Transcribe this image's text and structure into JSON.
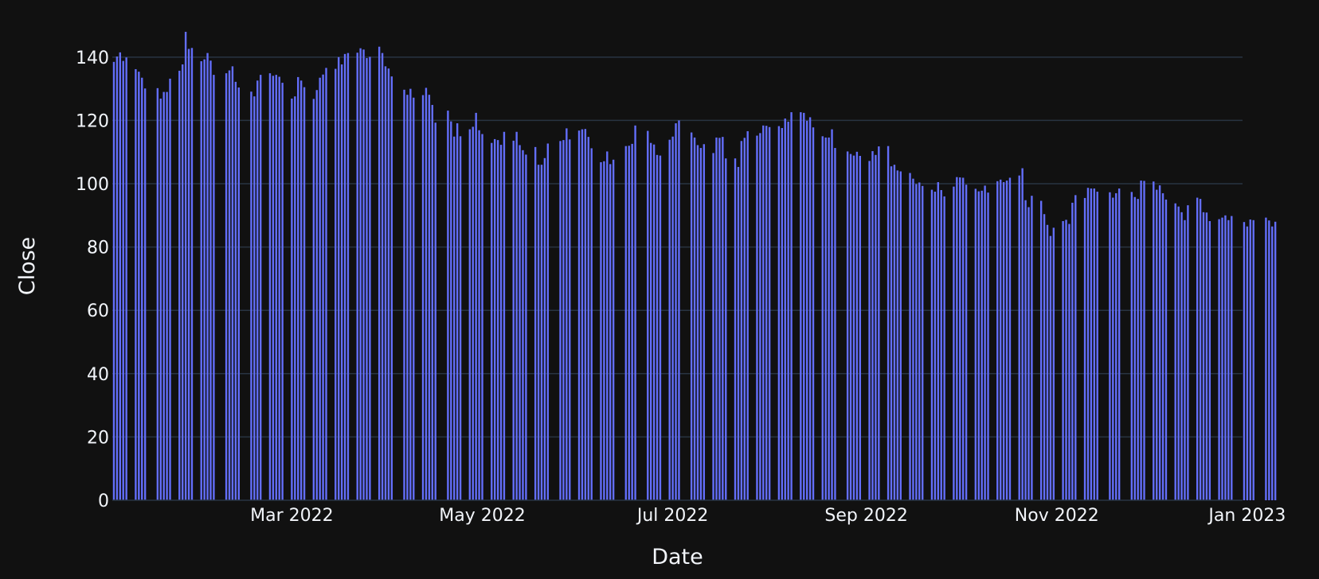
{
  "chart_data": {
    "type": "bar",
    "title": "",
    "xlabel": "Date",
    "ylabel": "Close",
    "ylim": [
      0,
      148
    ],
    "xlim": [
      "2022-01-03",
      "2022-12-30"
    ],
    "grid": true,
    "legend": "none",
    "colors": {
      "background": "#111111",
      "bar": "#636efa",
      "grid": "#283442",
      "text": "#f2f5fa"
    },
    "x_ticks": [
      {
        "date": "2022-03-01",
        "label": "Mar 2022"
      },
      {
        "date": "2022-05-01",
        "label": "May 2022"
      },
      {
        "date": "2022-07-01",
        "label": "Jul 2022"
      },
      {
        "date": "2022-09-01",
        "label": "Sep 2022"
      },
      {
        "date": "2022-11-01",
        "label": "Nov 2022"
      },
      {
        "date": "2023-01-01",
        "label": "Jan 2023"
      }
    ],
    "y_ticks": [
      {
        "value": 0,
        "label": "0"
      },
      {
        "value": 20,
        "label": "20"
      },
      {
        "value": 40,
        "label": "40"
      },
      {
        "value": 60,
        "label": "60"
      },
      {
        "value": 80,
        "label": "80"
      },
      {
        "value": 100,
        "label": "100"
      },
      {
        "value": 120,
        "label": "120"
      },
      {
        "value": 140,
        "label": "140"
      }
    ],
    "x_start_date": "2022-01-03",
    "series": [
      {
        "name": "Close",
        "points": [
          [
            0,
            138.5
          ],
          [
            1,
            140.2
          ],
          [
            2,
            141.5
          ],
          [
            3,
            138.8
          ],
          [
            4,
            139.9
          ],
          [
            7,
            136.2
          ],
          [
            8,
            135.4
          ],
          [
            9,
            133.5
          ],
          [
            10,
            130.1
          ],
          [
            14,
            130.2
          ],
          [
            15,
            126.9
          ],
          [
            16,
            129.0
          ],
          [
            17,
            129.0
          ],
          [
            18,
            133.2
          ],
          [
            21,
            135.7
          ],
          [
            22,
            137.7
          ],
          [
            23,
            148.0
          ],
          [
            24,
            142.6
          ],
          [
            25,
            142.9
          ],
          [
            28,
            138.7
          ],
          [
            29,
            139.3
          ],
          [
            30,
            141.3
          ],
          [
            31,
            138.9
          ],
          [
            32,
            134.4
          ],
          [
            36,
            134.9
          ],
          [
            37,
            135.8
          ],
          [
            38,
            137.1
          ],
          [
            39,
            132.2
          ],
          [
            40,
            130.4
          ],
          [
            44,
            129.1
          ],
          [
            45,
            127.6
          ],
          [
            46,
            132.6
          ],
          [
            47,
            134.4
          ],
          [
            50,
            134.9
          ],
          [
            51,
            134.1
          ],
          [
            52,
            134.4
          ],
          [
            53,
            133.8
          ],
          [
            54,
            131.9
          ],
          [
            57,
            126.9
          ],
          [
            58,
            127.6
          ],
          [
            59,
            133.7
          ],
          [
            60,
            132.6
          ],
          [
            61,
            130.5
          ],
          [
            64,
            126.8
          ],
          [
            65,
            129.6
          ],
          [
            66,
            133.5
          ],
          [
            67,
            134.5
          ],
          [
            68,
            136.6
          ],
          [
            71,
            136.3
          ],
          [
            72,
            140.0
          ],
          [
            73,
            137.7
          ],
          [
            74,
            141.0
          ],
          [
            75,
            141.3
          ],
          [
            78,
            141.4
          ],
          [
            79,
            142.8
          ],
          [
            80,
            142.4
          ],
          [
            81,
            139.7
          ],
          [
            82,
            140.1
          ],
          [
            85,
            143.3
          ],
          [
            86,
            141.3
          ],
          [
            87,
            137.1
          ],
          [
            88,
            136.4
          ],
          [
            89,
            133.9
          ],
          [
            93,
            129.7
          ],
          [
            94,
            128.1
          ],
          [
            95,
            130.0
          ],
          [
            96,
            127.2
          ],
          [
            99,
            128.0
          ],
          [
            100,
            130.3
          ],
          [
            101,
            128.1
          ],
          [
            102,
            124.9
          ],
          [
            103,
            119.3
          ],
          [
            107,
            123.1
          ],
          [
            108,
            119.7
          ],
          [
            109,
            114.9
          ],
          [
            110,
            119.1
          ],
          [
            111,
            115.0
          ],
          [
            114,
            117.2
          ],
          [
            115,
            118.0
          ],
          [
            116,
            122.4
          ],
          [
            117,
            116.9
          ],
          [
            118,
            115.7
          ],
          [
            121,
            112.9
          ],
          [
            122,
            114.1
          ],
          [
            123,
            113.8
          ],
          [
            124,
            112.3
          ],
          [
            125,
            116.4
          ],
          [
            128,
            113.6
          ],
          [
            129,
            116.4
          ],
          [
            130,
            112.2
          ],
          [
            131,
            110.6
          ],
          [
            132,
            109.2
          ],
          [
            135,
            111.6
          ],
          [
            136,
            106.0
          ],
          [
            137,
            106.0
          ],
          [
            138,
            108.1
          ],
          [
            139,
            112.7
          ],
          [
            143,
            113.5
          ],
          [
            144,
            113.8
          ],
          [
            145,
            117.5
          ],
          [
            146,
            114.0
          ],
          [
            149,
            116.8
          ],
          [
            150,
            117.2
          ],
          [
            151,
            117.3
          ],
          [
            152,
            114.8
          ],
          [
            153,
            111.2
          ],
          [
            156,
            106.8
          ],
          [
            157,
            107.1
          ],
          [
            158,
            110.2
          ],
          [
            159,
            106.2
          ],
          [
            160,
            107.6
          ],
          [
            164,
            111.9
          ],
          [
            165,
            112.0
          ],
          [
            166,
            112.6
          ],
          [
            167,
            118.4
          ],
          [
            171,
            116.7
          ],
          [
            172,
            112.9
          ],
          [
            173,
            112.4
          ],
          [
            174,
            109.1
          ],
          [
            175,
            108.9
          ],
          [
            178,
            113.9
          ],
          [
            179,
            114.9
          ],
          [
            180,
            119.1
          ],
          [
            181,
            120.0
          ],
          [
            185,
            116.2
          ],
          [
            186,
            114.6
          ],
          [
            187,
            112.2
          ],
          [
            188,
            111.3
          ],
          [
            189,
            112.5
          ],
          [
            192,
            109.7
          ],
          [
            193,
            114.6
          ],
          [
            194,
            114.5
          ],
          [
            195,
            114.8
          ],
          [
            196,
            108.0
          ],
          [
            199,
            108.0
          ],
          [
            200,
            105.3
          ],
          [
            201,
            113.5
          ],
          [
            202,
            114.5
          ],
          [
            203,
            116.6
          ],
          [
            206,
            115.2
          ],
          [
            207,
            116.0
          ],
          [
            208,
            118.4
          ],
          [
            209,
            118.3
          ],
          [
            210,
            117.9
          ],
          [
            213,
            118.2
          ],
          [
            214,
            117.6
          ],
          [
            215,
            120.6
          ],
          [
            216,
            119.6
          ],
          [
            217,
            122.6
          ],
          [
            220,
            122.6
          ],
          [
            221,
            122.4
          ],
          [
            222,
            119.9
          ],
          [
            223,
            121.0
          ],
          [
            224,
            117.8
          ],
          [
            227,
            115.0
          ],
          [
            228,
            114.6
          ],
          [
            229,
            114.6
          ],
          [
            230,
            117.2
          ],
          [
            231,
            111.3
          ],
          [
            235,
            110.2
          ],
          [
            236,
            109.4
          ],
          [
            237,
            108.9
          ],
          [
            238,
            110.1
          ],
          [
            239,
            108.8
          ],
          [
            242,
            107.2
          ],
          [
            243,
            110.3
          ],
          [
            244,
            109.1
          ],
          [
            245,
            111.8
          ],
          [
            248,
            111.9
          ],
          [
            249,
            105.5
          ],
          [
            250,
            106.0
          ],
          [
            251,
            104.2
          ],
          [
            252,
            103.9
          ],
          [
            255,
            103.4
          ],
          [
            256,
            101.6
          ],
          [
            257,
            99.9
          ],
          [
            258,
            100.4
          ],
          [
            259,
            99.3
          ],
          [
            262,
            98.1
          ],
          [
            263,
            97.5
          ],
          [
            264,
            100.5
          ],
          [
            265,
            98.0
          ],
          [
            266,
            96.0
          ],
          [
            269,
            99.1
          ],
          [
            270,
            102.1
          ],
          [
            271,
            102.0
          ],
          [
            272,
            101.9
          ],
          [
            273,
            99.7
          ],
          [
            276,
            98.4
          ],
          [
            277,
            97.6
          ],
          [
            278,
            97.8
          ],
          [
            279,
            99.4
          ],
          [
            280,
            97.2
          ],
          [
            283,
            100.8
          ],
          [
            284,
            101.3
          ],
          [
            285,
            100.5
          ],
          [
            286,
            101.0
          ],
          [
            287,
            101.9
          ],
          [
            290,
            102.6
          ],
          [
            291,
            104.9
          ],
          [
            292,
            94.8
          ],
          [
            293,
            92.6
          ],
          [
            294,
            96.2
          ],
          [
            297,
            94.6
          ],
          [
            298,
            90.4
          ],
          [
            299,
            87.0
          ],
          [
            300,
            83.5
          ],
          [
            301,
            86.1
          ],
          [
            304,
            88.2
          ],
          [
            305,
            88.6
          ],
          [
            306,
            87.3
          ],
          [
            307,
            94.0
          ],
          [
            308,
            96.4
          ],
          [
            311,
            95.5
          ],
          [
            312,
            98.7
          ],
          [
            313,
            98.5
          ],
          [
            314,
            98.5
          ],
          [
            315,
            97.5
          ],
          [
            319,
            97.3
          ],
          [
            320,
            95.6
          ],
          [
            321,
            97.0
          ],
          [
            322,
            98.5
          ],
          [
            326,
            97.4
          ],
          [
            327,
            95.8
          ],
          [
            328,
            95.2
          ],
          [
            329,
            101.0
          ],
          [
            330,
            100.9
          ],
          [
            333,
            100.7
          ],
          [
            334,
            98.1
          ],
          [
            335,
            99.5
          ],
          [
            336,
            97.0
          ],
          [
            337,
            95.0
          ],
          [
            340,
            93.8
          ],
          [
            341,
            92.8
          ],
          [
            342,
            91.0
          ],
          [
            343,
            88.5
          ],
          [
            344,
            93.2
          ],
          [
            347,
            95.6
          ],
          [
            348,
            95.2
          ],
          [
            349,
            91.0
          ],
          [
            350,
            90.9
          ],
          [
            351,
            88.2
          ],
          [
            354,
            88.8
          ],
          [
            355,
            89.3
          ],
          [
            356,
            90.0
          ],
          [
            357,
            88.5
          ],
          [
            358,
            89.8
          ],
          [
            362,
            87.9
          ],
          [
            363,
            86.5
          ],
          [
            364,
            88.7
          ],
          [
            365,
            88.5
          ],
          [
            369,
            89.3
          ],
          [
            370,
            88.4
          ],
          [
            371,
            86.5
          ],
          [
            372,
            88.0
          ]
        ]
      }
    ]
  }
}
